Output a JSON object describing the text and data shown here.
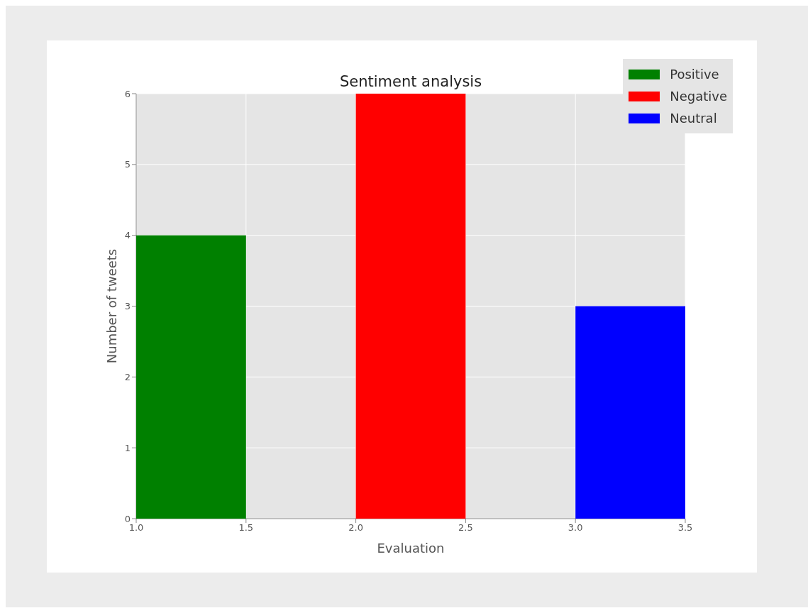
{
  "chart_data": {
    "type": "histogram",
    "title": "Sentiment analysis",
    "xlabel": "Evaluation",
    "ylabel": "Number of tweets",
    "bins": [
      1.0,
      1.5,
      2.0,
      2.5,
      3.0,
      3.5
    ],
    "series": [
      {
        "name": "Positive",
        "color": "#008000",
        "values": [
          4,
          null,
          null,
          null,
          null
        ]
      },
      {
        "name": "Negative",
        "color": "#ff0000",
        "values": [
          null,
          null,
          6,
          null,
          null
        ]
      },
      {
        "name": "Neutral",
        "color": "#0000ff",
        "values": [
          null,
          null,
          null,
          null,
          3
        ]
      }
    ],
    "xlim": [
      1.0,
      3.5
    ],
    "xticks": [
      {
        "value": 1,
        "label": "1.0"
      },
      {
        "value": 1.5,
        "label": "1.5"
      },
      {
        "value": 2,
        "label": "2.0"
      },
      {
        "value": 2.5,
        "label": "2.5"
      },
      {
        "value": 3,
        "label": "3.0"
      },
      {
        "value": 3.5,
        "label": "3.5"
      }
    ],
    "ylim": [
      0,
      6
    ],
    "yticks": [
      0,
      1,
      2,
      3,
      4,
      5,
      6
    ],
    "grid": true,
    "legend": "top right"
  }
}
